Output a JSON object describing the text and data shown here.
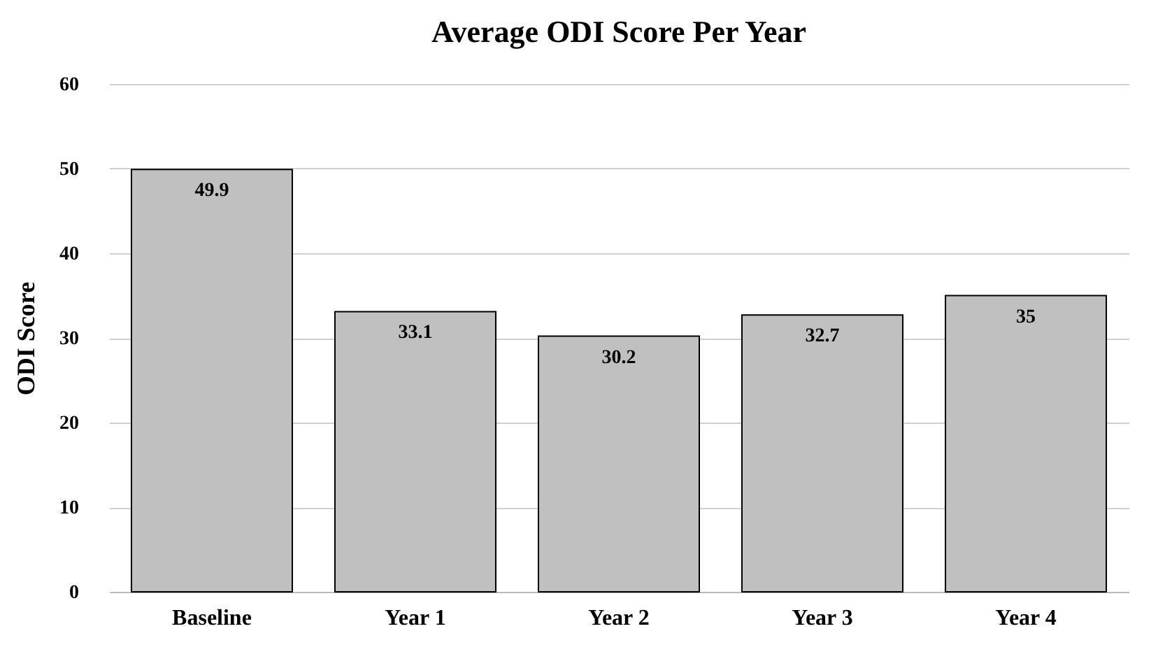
{
  "chart_data": {
    "type": "bar",
    "title": "Average ODI Score Per Year",
    "ylabel": "ODI Score",
    "categories": [
      "Baseline",
      "Year 1",
      "Year 2",
      "Year 3",
      "Year 4"
    ],
    "values": [
      49.9,
      33.1,
      30.2,
      32.7,
      35
    ],
    "color": "#c0c0c0",
    "ylim": [
      0,
      60
    ],
    "yticks": [
      0,
      10,
      20,
      30,
      40,
      50,
      60
    ],
    "grid": "y",
    "data_labels": true
  }
}
